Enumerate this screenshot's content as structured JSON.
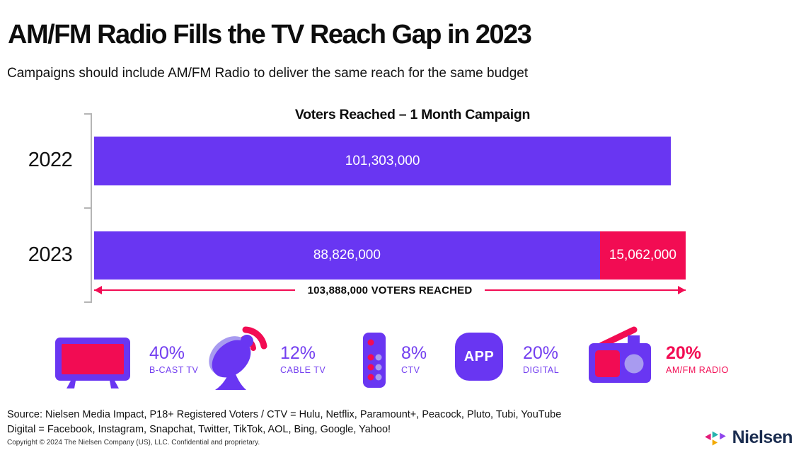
{
  "page": {
    "title": "AM/FM Radio Fills the TV Reach Gap in 2023",
    "subtitle": "Campaigns should include AM/FM Radio to deliver the same reach for the same budget"
  },
  "chart_data": {
    "type": "bar",
    "orientation": "horizontal",
    "title": "Voters Reached – 1 Month Campaign",
    "categories": [
      "2022",
      "2023"
    ],
    "series": [
      {
        "name": "TV",
        "color": "#6936F2",
        "values": [
          101303000,
          88826000
        ],
        "labels": [
          "101,303,000",
          "88,826,000"
        ]
      },
      {
        "name": "AM/FM Radio",
        "color": "#F20C53",
        "values": [
          0,
          15062000
        ],
        "labels": [
          "",
          "15,062,000"
        ]
      }
    ],
    "x_max": 103888000,
    "annotation": "103,888,000 VOTERS REACHED",
    "grid": false,
    "legend_position": "none"
  },
  "media_stats": [
    {
      "icon": "tv-icon",
      "percent": "40%",
      "label": "B-CAST TV"
    },
    {
      "icon": "satellite-dish-icon",
      "percent": "12%",
      "label": "CABLE TV"
    },
    {
      "icon": "remote-icon",
      "percent": "8%",
      "label": "CTV"
    },
    {
      "icon": "app-icon",
      "percent": "20%",
      "label": "DIGITAL",
      "app_text": "APP"
    },
    {
      "icon": "radio-icon",
      "percent": "20%",
      "label": "AM/FM RADIO"
    }
  ],
  "footer": {
    "source_line1": "Source: Nielsen Media Impact, P18+ Registered Voters / CTV = Hulu, Netflix, Paramount+, Peacock, Pluto, Tubi, YouTube",
    "source_line2": "Digital = Facebook, Instagram, Snapchat, Twitter, TikTok, AOL, Bing, Google, Yahoo!",
    "copyright": "Copyright © 2024 The Nielsen Company (US), LLC. Confidential and proprietary.",
    "logo_text": "Nielsen"
  },
  "colors": {
    "purple": "#6936F2",
    "pink": "#F20C53",
    "light_purple": "#A89BF0",
    "label_purple": "#7440F0",
    "logo_navy": "#1B2D50"
  }
}
